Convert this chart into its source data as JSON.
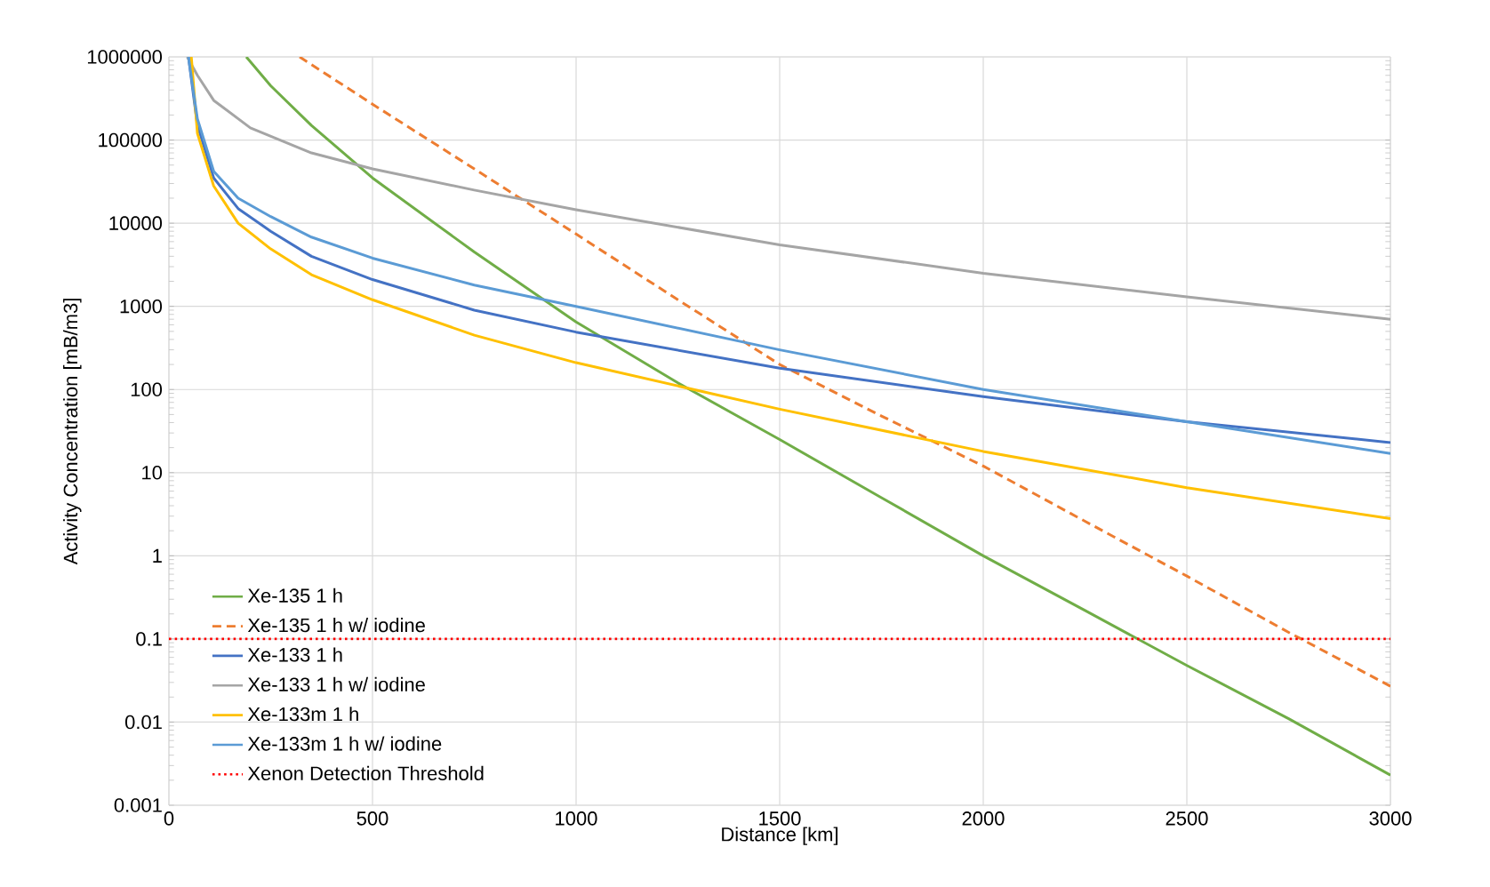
{
  "chart_data": {
    "type": "line",
    "xlabel": "Distance [km]",
    "ylabel": "Activity Concentration [mB/m3]",
    "xlim": [
      0,
      3000
    ],
    "xticks": [
      0,
      500,
      1000,
      1500,
      2000,
      2500,
      3000
    ],
    "ylim": [
      0.001,
      1000000
    ],
    "yticks": [
      0.001,
      0.01,
      0.1,
      1,
      10,
      100,
      1000,
      10000,
      100000,
      1000000
    ],
    "log": "y",
    "grid": true,
    "legend": "bottom left",
    "marker": "none",
    "series": [
      {
        "name": "Xe-135 1 h",
        "color": "#70ad47",
        "line_style": "solid",
        "x": [
          190,
          250,
          350,
          500,
          750,
          1000,
          1250,
          1500,
          1750,
          2000,
          2250,
          2500,
          2750,
          3000
        ],
        "values": [
          1000000,
          450000,
          150000,
          35000,
          4500,
          650,
          120,
          25,
          5,
          1,
          0.22,
          0.048,
          0.011,
          0.0023
        ]
      },
      {
        "name": "Xe-135 1 h w/ iodine",
        "color": "#ed7d31",
        "line_style": "dashed",
        "x": [
          321,
          500,
          750,
          1000,
          1250,
          1500,
          1750,
          2000,
          2250,
          2500,
          2750,
          3000
        ],
        "values": [
          1000000,
          270000,
          45000,
          7400,
          1200,
          200,
          48,
          12,
          2.6,
          0.57,
          0.12,
          0.027
        ]
      },
      {
        "name": "Xe-133 1 h",
        "color": "#4472c4",
        "line_style": "solid",
        "x": [
          48,
          70,
          110,
          170,
          250,
          350,
          500,
          750,
          1000,
          1500,
          2000,
          2500,
          3000
        ],
        "values": [
          1000000,
          150000,
          35000,
          15000,
          8000,
          4000,
          2100,
          900,
          490,
          180,
          82,
          41,
          23
        ]
      },
      {
        "name": "Xe-133 1 h w/ iodine",
        "color": "#a5a5a5",
        "line_style": "solid",
        "x": [
          45,
          70,
          110,
          200,
          350,
          500,
          750,
          1000,
          1500,
          2000,
          2500,
          3000
        ],
        "values": [
          1000000,
          600000,
          300000,
          140000,
          70000,
          45000,
          25000,
          14500,
          5500,
          2500,
          1300,
          700
        ]
      },
      {
        "name": "Xe-133m 1 h",
        "color": "#ffc000",
        "line_style": "solid",
        "x": [
          55,
          70,
          110,
          170,
          250,
          350,
          500,
          750,
          1000,
          1500,
          2000,
          2500,
          3000
        ],
        "values": [
          1000000,
          120000,
          28000,
          10000,
          4900,
          2400,
          1200,
          450,
          210,
          58,
          18,
          6.6,
          2.8
        ]
      },
      {
        "name": "Xe-133m 1 h w/ iodine",
        "color": "#5b9bd5",
        "line_style": "solid",
        "x": [
          48,
          70,
          110,
          170,
          250,
          350,
          500,
          750,
          1000,
          1500,
          2000,
          2500,
          3000
        ],
        "values": [
          1000000,
          180000,
          42000,
          20000,
          12000,
          6800,
          3800,
          1800,
          1000,
          300,
          100,
          41,
          17
        ]
      }
    ],
    "ref_lines": [
      {
        "axis": "y",
        "value": 0.1,
        "label": "Xenon Detection Threshold",
        "color": "#ff0000",
        "line_style": "dotted"
      }
    ]
  }
}
